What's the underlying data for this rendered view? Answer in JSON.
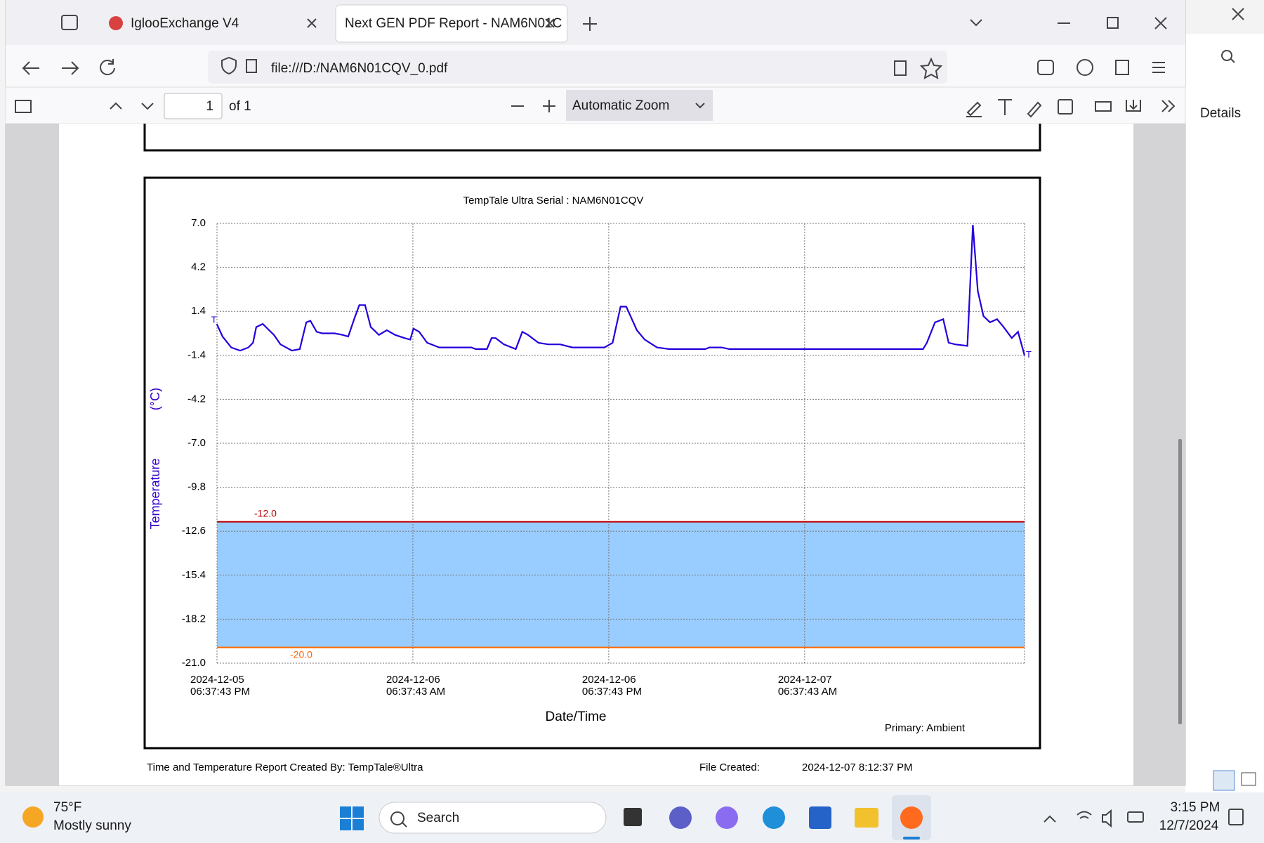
{
  "browser": {
    "tabs": [
      "IglooExchange V4",
      "Next GEN PDF Report - NAM6N01C"
    ],
    "url": "file:///D:/NAM6N01CQV_0.pdf",
    "page_number": "1",
    "page_of": "of 1",
    "zoom": "Automatic Zoom",
    "side_panel": "Details"
  },
  "chart_data": {
    "type": "line",
    "title": "TempTale Ultra  Serial : NAM6N01CQV",
    "y_label": "Temperature",
    "y_unit": "(°C)",
    "x_label": "Date/Time",
    "note": "Primary: Ambient",
    "markers": [
      "T",
      "T"
    ],
    "color": "#2200dd",
    "band_color": "#99ccff",
    "grid": true,
    "ylim": [
      -21,
      7
    ],
    "yticks": [
      {
        "value": 7,
        "label": "7.0"
      },
      4.2,
      1.4,
      -1.4,
      -4.2,
      {
        "value": -7,
        "label": "-7.0"
      },
      -9.8,
      -12.6,
      -15.4,
      -18.2,
      {
        "value": -21,
        "label": "-21.0"
      }
    ],
    "xlim": [
      "2024-12-05T18:37:43",
      "2024-12-07T20:06"
    ],
    "xticks": [
      {
        "value": "2024-12-05T18:37:43",
        "label": [
          "2024-12-05",
          "06:37:43 PM"
        ]
      },
      {
        "value": "2024-12-06T06:37:43",
        "label": [
          "2024-12-06",
          "06:37:43 AM"
        ]
      },
      {
        "value": "2024-12-06T18:37:43",
        "label": [
          "2024-12-06",
          "06:37:43 PM"
        ]
      },
      {
        "value": "2024-12-07T06:37:43",
        "label": [
          "2024-12-07",
          "06:37:43 AM"
        ]
      }
    ],
    "thresholds": [
      {
        "value": -12,
        "label": "-12.0",
        "color": "#c00000"
      },
      {
        "value": -20,
        "label": "-20.0",
        "color": "#ff6600"
      }
    ],
    "x": [
      "2024-12-05T18:37",
      "2024-12-05T18:58",
      "2024-12-05T19:30",
      "2024-12-05T20:03",
      "2024-12-05T20:33",
      "2024-12-05T20:50",
      "2024-12-05T21:02",
      "2024-12-05T21:26",
      "2024-12-05T22:07",
      "2024-12-05T22:31",
      "2024-12-05T23:13",
      "2024-12-05T23:42",
      "2024-12-06T00:06",
      "2024-12-06T00:21",
      "2024-12-06T00:44",
      "2024-12-06T01:05",
      "2024-12-06T01:50",
      "2024-12-06T02:19",
      "2024-12-06T02:40",
      "2024-12-06T03:04",
      "2024-12-06T03:21",
      "2024-12-06T03:42",
      "2024-12-06T04:03",
      "2024-12-06T04:33",
      "2024-12-06T05:02",
      "2024-12-06T05:32",
      "2024-12-06T06:07",
      "2024-12-06T06:28",
      "2024-12-06T06:40",
      "2024-12-06T07:01",
      "2024-12-06T07:30",
      "2024-12-06T08:15",
      "2024-12-06T10:13",
      "2024-12-06T10:28",
      "2024-12-06T11:10",
      "2024-12-06T11:27",
      "2024-12-06T11:42",
      "2024-12-06T12:12",
      "2024-12-06T12:56",
      "2024-12-06T13:20",
      "2024-12-06T13:41",
      "2024-12-06T14:19",
      "2024-12-06T14:55",
      "2024-12-06T15:39",
      "2024-12-06T16:24",
      "2024-12-06T18:22",
      "2024-12-06T18:52",
      "2024-12-06T19:21",
      "2024-12-06T19:42",
      "2024-12-06T20:21",
      "2024-12-06T20:50",
      "2024-12-06T21:35",
      "2024-12-06T22:19",
      "2024-12-07T00:33",
      "2024-12-07T00:47",
      "2024-12-07T01:32",
      "2024-12-07T02:01",
      "2024-12-07T13:53",
      "2024-12-07T14:07",
      "2024-12-07T14:37",
      "2024-12-07T15:07",
      "2024-12-07T15:27",
      "2024-12-07T15:51",
      "2024-12-07T16:36",
      "2024-12-07T16:56",
      "2024-12-07T17:14",
      "2024-12-07T17:35",
      "2024-12-07T17:59",
      "2024-12-07T18:25",
      "2024-12-07T18:49",
      "2024-12-07T19:19",
      "2024-12-07T19:42",
      "2024-12-07T20:06"
    ],
    "values": [
      0.6,
      -0.2,
      -0.9,
      -1.1,
      -0.9,
      -0.6,
      0.4,
      0.6,
      -0.1,
      -0.7,
      -1.1,
      -1.0,
      0.7,
      0.8,
      0.1,
      0.0,
      0.0,
      -0.1,
      -0.2,
      1.0,
      1.8,
      1.8,
      0.4,
      -0.1,
      0.2,
      -0.1,
      -0.3,
      -0.4,
      0.3,
      0.1,
      -0.6,
      -0.9,
      -0.9,
      -1.0,
      -1.0,
      -0.3,
      -0.3,
      -0.7,
      -1.0,
      0.1,
      -0.1,
      -0.6,
      -0.7,
      -0.7,
      -0.9,
      -0.9,
      -0.6,
      1.7,
      1.7,
      0.2,
      -0.4,
      -0.9,
      -1.0,
      -1.0,
      -0.9,
      -0.9,
      -1.0,
      -1.0,
      -0.6,
      0.7,
      0.9,
      -0.6,
      -0.7,
      -0.8,
      6.9,
      2.7,
      1.1,
      0.7,
      0.9,
      0.4,
      -0.3,
      0.1,
      -1.4
    ]
  },
  "footer": {
    "created_by": "Time and Temperature Report Created By:  TempTale®Ultra",
    "file_created_label": "File Created:",
    "file_created": "2024-12-07  8:12:37 PM"
  },
  "taskbar": {
    "temperature": "75°F",
    "weather": "Mostly sunny",
    "search": "Search",
    "time": "3:15 PM",
    "date": "12/7/2024"
  }
}
